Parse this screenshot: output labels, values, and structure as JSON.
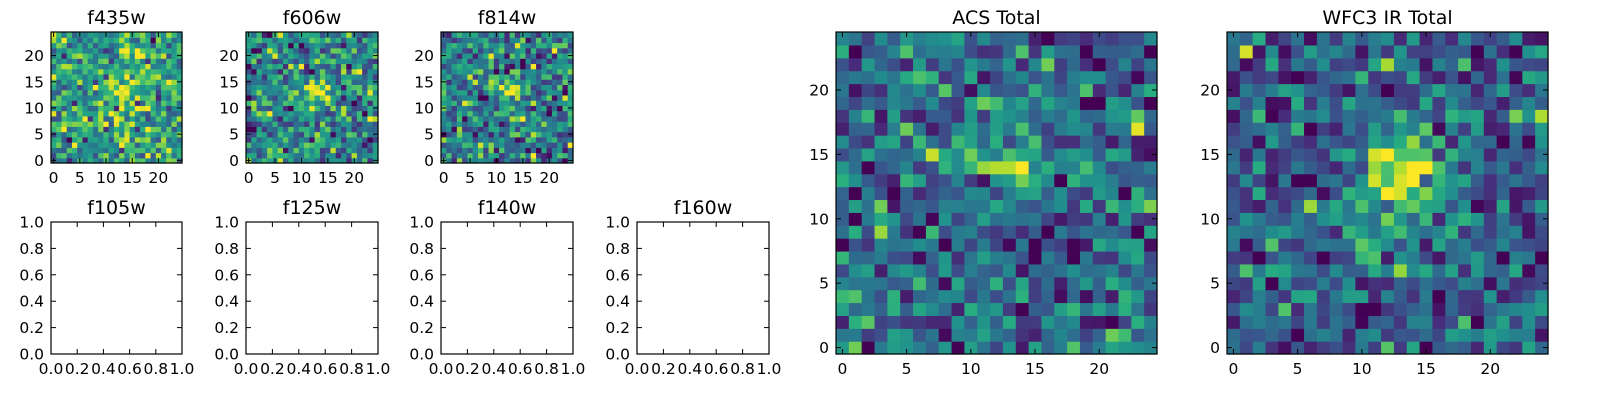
{
  "chart_data": {
    "type": "heatmap",
    "colormap": "viridis",
    "panels": [
      {
        "title": "f435w",
        "kind": "image",
        "extent": [
          -0.5,
          24.5,
          -0.5,
          24.5
        ],
        "xticks": [
          0,
          5,
          10,
          15,
          20
        ],
        "yticks": [
          0,
          5,
          10,
          15,
          20
        ],
        "noise": 0.55,
        "sigma": 3.0,
        "blob": [
          [
            13,
            14,
            0.25,
            3.0
          ]
        ],
        "seed": 11
      },
      {
        "title": "f606w",
        "kind": "image",
        "extent": [
          -0.5,
          24.5,
          -0.5,
          24.5
        ],
        "xticks": [
          0,
          5,
          10,
          15,
          20
        ],
        "yticks": [
          0,
          5,
          10,
          15,
          20
        ],
        "noise": 0.45,
        "sigma": 2.8,
        "blob": [
          [
            13,
            13.5,
            0.55,
            1.4
          ]
        ],
        "seed": 23
      },
      {
        "title": "f814w",
        "kind": "image",
        "extent": [
          -0.5,
          24.5,
          -0.5,
          24.5
        ],
        "xticks": [
          0,
          5,
          10,
          15,
          20
        ],
        "yticks": [
          0,
          5,
          10,
          15,
          20
        ],
        "noise": 0.45,
        "sigma": 2.8,
        "blob": [
          [
            13,
            13.5,
            0.55,
            1.3
          ]
        ],
        "seed": 37
      },
      {
        "title": "f105w",
        "kind": "empty",
        "xlim": [
          0,
          1
        ],
        "ylim": [
          0,
          1
        ],
        "xticks": [
          "0.0",
          "0.2",
          "0.4",
          "0.6",
          "0.8",
          "1.0"
        ],
        "yticks": [
          "0.0",
          "0.2",
          "0.4",
          "0.6",
          "0.8",
          "1.0"
        ]
      },
      {
        "title": "f125w",
        "kind": "empty",
        "xlim": [
          0,
          1
        ],
        "ylim": [
          0,
          1
        ],
        "xticks": [
          "0.0",
          "0.2",
          "0.4",
          "0.6",
          "0.8",
          "1.0"
        ],
        "yticks": [
          "0.0",
          "0.2",
          "0.4",
          "0.6",
          "0.8",
          "1.0"
        ]
      },
      {
        "title": "f140w",
        "kind": "empty",
        "xlim": [
          0,
          1
        ],
        "ylim": [
          0,
          1
        ],
        "xticks": [
          "0.0",
          "0.2",
          "0.4",
          "0.6",
          "0.8",
          "1.0"
        ],
        "yticks": [
          "0.0",
          "0.2",
          "0.4",
          "0.6",
          "0.8",
          "1.0"
        ]
      },
      {
        "title": "f160w",
        "kind": "empty",
        "xlim": [
          0,
          1
        ],
        "ylim": [
          0,
          1
        ],
        "xticks": [
          "0.0",
          "0.2",
          "0.4",
          "0.6",
          "0.8",
          "1.0"
        ],
        "yticks": [
          "0.0",
          "0.2",
          "0.4",
          "0.6",
          "0.8",
          "1.0"
        ]
      },
      {
        "title": "ACS Total",
        "kind": "image",
        "extent": [
          -0.5,
          24.5,
          -0.5,
          24.5
        ],
        "xticks": [
          0,
          5,
          10,
          15,
          20
        ],
        "yticks": [
          0,
          5,
          10,
          15,
          20
        ],
        "noise": 0.35,
        "sigma": 3.2,
        "blob": [
          [
            13,
            14,
            0.6,
            1.3
          ]
        ],
        "seed": 53
      },
      {
        "title": "WFC3 IR Total",
        "kind": "image",
        "extent": [
          -0.5,
          24.5,
          -0.5,
          24.5
        ],
        "xticks": [
          0,
          5,
          10,
          15,
          20
        ],
        "yticks": [
          0,
          5,
          10,
          15,
          20
        ],
        "noise": 0.3,
        "sigma": 3.2,
        "blob": [
          [
            13.5,
            13.5,
            0.7,
            2.2
          ],
          [
            11,
            10,
            0.35,
            1.8
          ],
          [
            11,
            7,
            0.3,
            1.2
          ]
        ],
        "seed": 71
      }
    ]
  }
}
